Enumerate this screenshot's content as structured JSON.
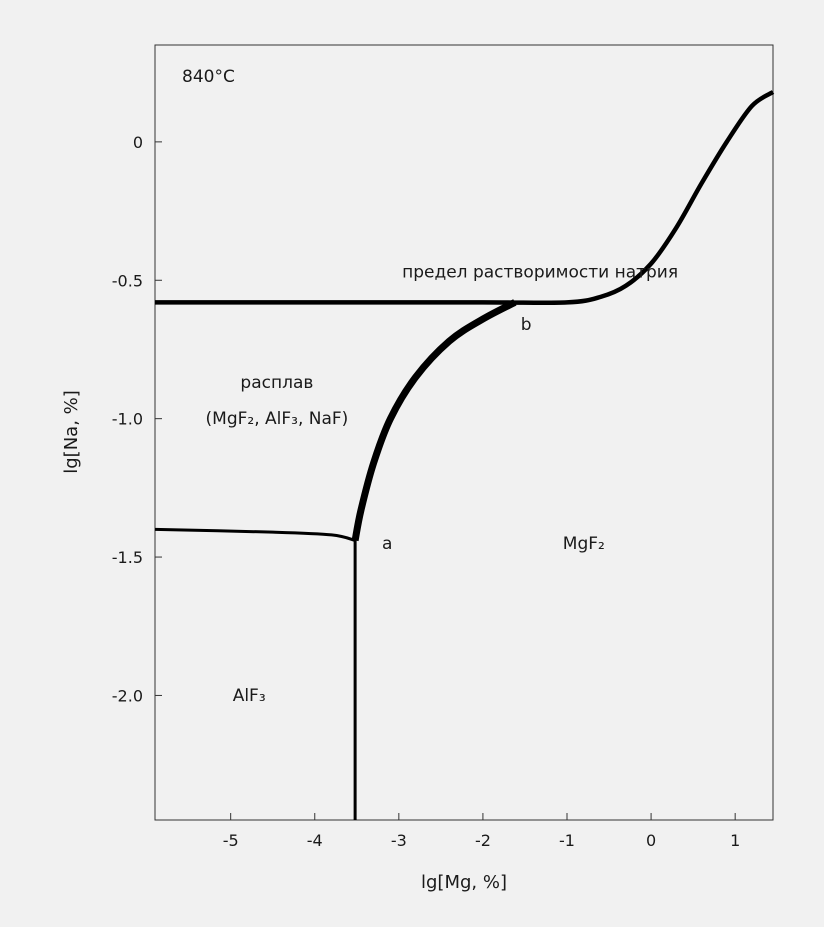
{
  "chart_data": {
    "type": "line",
    "title": "",
    "temperature_label": "840°C",
    "xlabel": "lg[Mg, %]",
    "ylabel": "lg[Na, %]",
    "xlim": [
      -5.9,
      1.45
    ],
    "ylim": [
      -2.45,
      0.35
    ],
    "x_ticks": [
      -5,
      -4,
      -3,
      -2,
      -1,
      0,
      1
    ],
    "x_tick_labels": [
      "-5",
      "-4",
      "-3",
      "-2",
      "-1",
      "0",
      "1"
    ],
    "y_ticks": [
      0,
      -0.5,
      -1.0,
      -1.5,
      -2.0
    ],
    "y_tick_labels": [
      "0",
      "-0.5",
      "-1.0",
      "-1.5",
      "-2.0"
    ],
    "grid": false,
    "series": [
      {
        "id": "solubility-limit",
        "points": [
          [
            -5.9,
            -0.58
          ],
          [
            -4.0,
            -0.58
          ],
          [
            -2.0,
            -0.58
          ],
          [
            -1.0,
            -0.58
          ],
          [
            -0.6,
            -0.56
          ],
          [
            -0.3,
            -0.52
          ],
          [
            0.0,
            -0.44
          ],
          [
            0.3,
            -0.31
          ],
          [
            0.6,
            -0.15
          ],
          [
            0.9,
            0.0
          ],
          [
            1.2,
            0.13
          ],
          [
            1.45,
            0.18
          ]
        ]
      },
      {
        "id": "melt-mgf2-boundary",
        "points": [
          [
            -3.52,
            -1.44
          ],
          [
            -3.45,
            -1.33
          ],
          [
            -3.3,
            -1.16
          ],
          [
            -3.1,
            -1.0
          ],
          [
            -2.8,
            -0.85
          ],
          [
            -2.4,
            -0.72
          ],
          [
            -2.0,
            -0.64
          ],
          [
            -1.62,
            -0.58
          ]
        ]
      },
      {
        "id": "melt-alf3-boundary",
        "points": [
          [
            -5.9,
            -1.4
          ],
          [
            -4.5,
            -1.41
          ],
          [
            -3.8,
            -1.42
          ],
          [
            -3.52,
            -1.44
          ]
        ]
      },
      {
        "id": "alf3-mgf2-boundary",
        "points": [
          [
            -3.52,
            -1.44
          ],
          [
            -3.52,
            -2.45
          ]
        ]
      }
    ],
    "annotations": [
      {
        "id": "solubility-limit",
        "text": "предел растворимости натрия",
        "x": -1.32,
        "y": -0.49
      },
      {
        "id": "point-b",
        "text": "b",
        "x": -1.55,
        "y": -0.68
      },
      {
        "id": "point-a",
        "text": "a",
        "x": -3.2,
        "y": -1.47
      },
      {
        "id": "melt",
        "text": "расплав",
        "x": -4.45,
        "y": -0.89
      },
      {
        "id": "melt-composition",
        "text": "(MgF₂, AlF₃, NaF)",
        "x": -4.45,
        "y": -1.02
      },
      {
        "id": "phase-mgf2",
        "text": "MgF₂",
        "x": -0.8,
        "y": -1.47
      },
      {
        "id": "phase-alf3",
        "text": "AlF₃",
        "x": -4.78,
        "y": -2.02
      }
    ]
  }
}
